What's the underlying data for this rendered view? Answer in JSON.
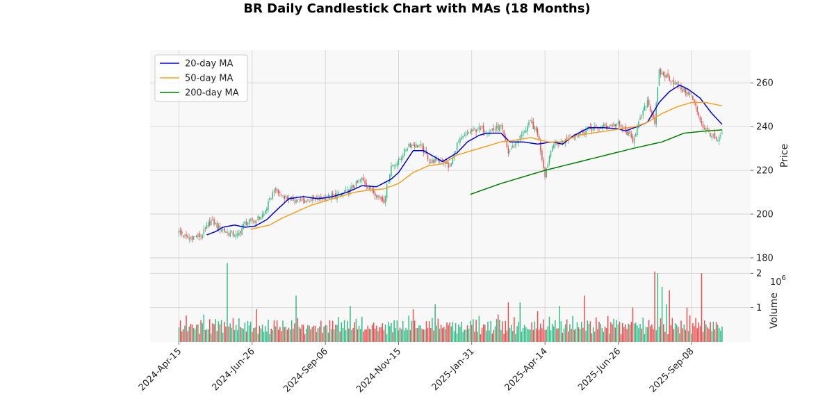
{
  "chart_data": {
    "type": "candlestick",
    "title": "BR Daily Candlestick Chart with MAs (18 Months)",
    "ylabel_price": "Price",
    "ylabel_volume": "Volume",
    "volume_exponent": "10^6",
    "price_ylim": [
      180,
      275
    ],
    "price_yticks": [
      180,
      200,
      220,
      240,
      260
    ],
    "volume_ylim": [
      0,
      2.45
    ],
    "volume_yticks": [
      1,
      2
    ],
    "xtick_labels": [
      "2024-Apr-15",
      "2024-Jun-26",
      "2024-Sep-06",
      "2024-Nov-15",
      "2025-Jan-31",
      "2025-Apr-14",
      "2025-Jun-26",
      "2025-Sep-08"
    ],
    "xtick_index": [
      0,
      50,
      100,
      150,
      200,
      250,
      300,
      350
    ],
    "n_days": 372,
    "grid": true,
    "legend_position": "upper-left",
    "colors": {
      "up": "#2ebd85",
      "down": "#f04a4a",
      "panel_bg": "#f8f8f8",
      "grid": "#d0d0d0"
    },
    "legend": [
      {
        "name": "20-day MA",
        "color": "#0000dd"
      },
      {
        "name": "50-day MA",
        "color": "#f5a020"
      },
      {
        "name": "200-day MA",
        "color": "#008000"
      }
    ],
    "close_keypoints": [
      [
        0,
        192
      ],
      [
        5,
        189
      ],
      [
        15,
        190
      ],
      [
        22,
        197
      ],
      [
        27,
        194
      ],
      [
        32,
        192
      ],
      [
        40,
        190
      ],
      [
        45,
        196
      ],
      [
        52,
        197
      ],
      [
        58,
        200
      ],
      [
        65,
        211
      ],
      [
        75,
        207
      ],
      [
        85,
        206
      ],
      [
        95,
        207
      ],
      [
        105,
        208
      ],
      [
        115,
        210
      ],
      [
        125,
        216
      ],
      [
        130,
        212
      ],
      [
        140,
        206
      ],
      [
        145,
        222
      ],
      [
        150,
        224
      ],
      [
        157,
        232
      ],
      [
        165,
        231
      ],
      [
        172,
        224
      ],
      [
        180,
        225
      ],
      [
        185,
        221
      ],
      [
        190,
        232
      ],
      [
        197,
        237
      ],
      [
        205,
        239
      ],
      [
        212,
        238
      ],
      [
        220,
        240
      ],
      [
        225,
        228
      ],
      [
        232,
        234
      ],
      [
        240,
        242
      ],
      [
        245,
        237
      ],
      [
        250,
        218
      ],
      [
        255,
        232
      ],
      [
        262,
        233
      ],
      [
        270,
        236
      ],
      [
        280,
        239
      ],
      [
        290,
        240
      ],
      [
        300,
        241
      ],
      [
        305,
        238
      ],
      [
        310,
        234
      ],
      [
        315,
        243
      ],
      [
        320,
        252
      ],
      [
        325,
        242
      ],
      [
        328,
        265
      ],
      [
        335,
        262
      ],
      [
        342,
        258
      ],
      [
        350,
        254
      ],
      [
        358,
        240
      ],
      [
        364,
        236
      ],
      [
        368,
        233
      ],
      [
        371,
        237
      ]
    ],
    "ma20_keypoints": [
      [
        19,
        190.5
      ],
      [
        25,
        192
      ],
      [
        30,
        194
      ],
      [
        38,
        195
      ],
      [
        45,
        194
      ],
      [
        52,
        194.5
      ],
      [
        60,
        197.5
      ],
      [
        67,
        202
      ],
      [
        75,
        207
      ],
      [
        85,
        208
      ],
      [
        95,
        207
      ],
      [
        105,
        208
      ],
      [
        115,
        210
      ],
      [
        125,
        213
      ],
      [
        135,
        212.5
      ],
      [
        145,
        216
      ],
      [
        150,
        219
      ],
      [
        160,
        229
      ],
      [
        167,
        229
      ],
      [
        175,
        226
      ],
      [
        180,
        224
      ],
      [
        190,
        228
      ],
      [
        197,
        233
      ],
      [
        205,
        236
      ],
      [
        210,
        237
      ],
      [
        220,
        237
      ],
      [
        226,
        233
      ],
      [
        235,
        233
      ],
      [
        245,
        232
      ],
      [
        255,
        233
      ],
      [
        262,
        232
      ],
      [
        270,
        236
      ],
      [
        280,
        239.5
      ],
      [
        290,
        239.5
      ],
      [
        300,
        239
      ],
      [
        305,
        238
      ],
      [
        313,
        240
      ],
      [
        320,
        242
      ],
      [
        328,
        251
      ],
      [
        335,
        256
      ],
      [
        342,
        259
      ],
      [
        348,
        257
      ],
      [
        356,
        253
      ],
      [
        364,
        246
      ],
      [
        371,
        241
      ]
    ],
    "ma50_keypoints": [
      [
        49,
        193
      ],
      [
        55,
        194
      ],
      [
        62,
        195
      ],
      [
        70,
        198
      ],
      [
        80,
        201
      ],
      [
        90,
        204
      ],
      [
        100,
        206
      ],
      [
        110,
        208
      ],
      [
        120,
        210
      ],
      [
        130,
        211
      ],
      [
        140,
        211.5
      ],
      [
        150,
        214
      ],
      [
        160,
        219
      ],
      [
        170,
        222
      ],
      [
        180,
        223
      ],
      [
        190,
        227
      ],
      [
        200,
        229
      ],
      [
        210,
        231
      ],
      [
        220,
        233
      ],
      [
        232,
        234
      ],
      [
        240,
        235
      ],
      [
        252,
        233
      ],
      [
        262,
        233
      ],
      [
        272,
        236
      ],
      [
        282,
        237
      ],
      [
        292,
        238
      ],
      [
        302,
        239
      ],
      [
        312,
        240
      ],
      [
        320,
        242
      ],
      [
        330,
        246
      ],
      [
        340,
        249
      ],
      [
        350,
        251
      ],
      [
        360,
        251
      ],
      [
        371,
        249.5
      ]
    ],
    "ma200_keypoints": [
      [
        199,
        209
      ],
      [
        220,
        214
      ],
      [
        250,
        220
      ],
      [
        280,
        225
      ],
      [
        310,
        230
      ],
      [
        330,
        233
      ],
      [
        345,
        237
      ],
      [
        360,
        238
      ],
      [
        371,
        238.5
      ]
    ],
    "volume_pattern": [
      0.45,
      0.55,
      0.35,
      0.5,
      0.4,
      0.6,
      0.3,
      0.5
    ],
    "volume_spikes": [
      [
        17,
        0.8
      ],
      [
        33,
        2.3
      ],
      [
        53,
        0.95
      ],
      [
        80,
        1.35
      ],
      [
        117,
        1.05
      ],
      [
        160,
        0.95
      ],
      [
        175,
        1.1
      ],
      [
        218,
        0.8
      ],
      [
        225,
        1.15
      ],
      [
        233,
        1.15
      ],
      [
        245,
        0.9
      ],
      [
        260,
        1.05
      ],
      [
        277,
        1.35
      ],
      [
        310,
        1.0
      ],
      [
        325,
        2.05
      ],
      [
        327,
        2.0
      ],
      [
        330,
        1.6
      ],
      [
        333,
        1.1
      ],
      [
        335,
        1.5
      ],
      [
        347,
        1.0
      ],
      [
        357,
        2.0
      ],
      [
        368,
        0.5
      ]
    ]
  }
}
